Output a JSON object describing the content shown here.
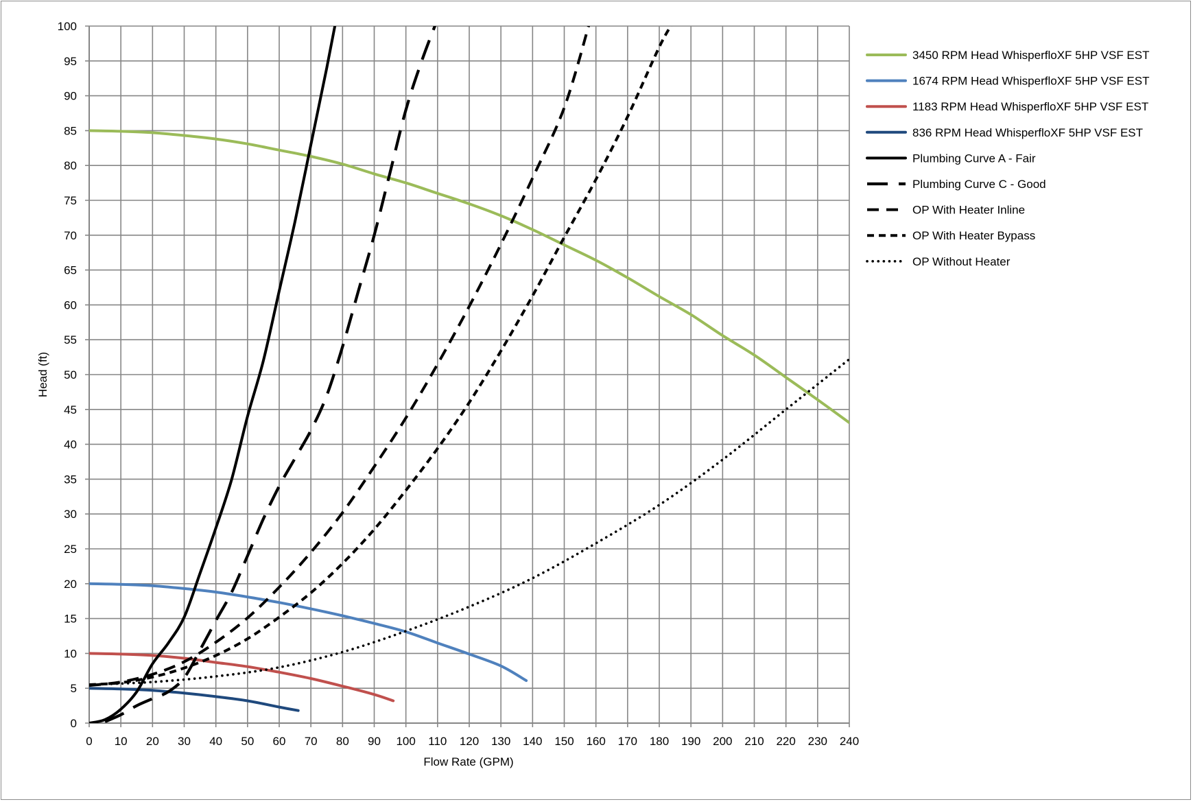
{
  "chart_data": {
    "type": "line",
    "title": "",
    "xlabel": "Flow Rate (GPM)",
    "ylabel": "Head (ft)",
    "xlim": [
      0,
      240
    ],
    "ylim": [
      0,
      100
    ],
    "x_ticks": [
      0,
      10,
      20,
      30,
      40,
      50,
      60,
      70,
      80,
      90,
      100,
      110,
      120,
      130,
      140,
      150,
      160,
      170,
      180,
      190,
      200,
      210,
      220,
      230,
      240
    ],
    "y_ticks": [
      0,
      5,
      10,
      15,
      20,
      25,
      30,
      35,
      40,
      45,
      50,
      55,
      60,
      65,
      70,
      75,
      80,
      85,
      90,
      95,
      100
    ],
    "grid": true,
    "legend_position": "right",
    "series": [
      {
        "name": "3450 RPM Head WhisperfloXF 5HP VSF EST",
        "color": "#9bbb59",
        "style": "solid",
        "x": [
          0,
          10,
          20,
          30,
          40,
          50,
          60,
          70,
          80,
          90,
          100,
          110,
          120,
          130,
          140,
          150,
          160,
          170,
          180,
          190,
          200,
          210,
          220,
          230,
          240
        ],
        "y": [
          85,
          84.9,
          84.7,
          84.3,
          83.8,
          83.1,
          82.2,
          81.3,
          80.2,
          78.8,
          77.5,
          76,
          74.5,
          72.8,
          70.8,
          68.6,
          66.4,
          63.9,
          61.2,
          58.6,
          55.6,
          52.8,
          49.6,
          46.4,
          43.1
        ]
      },
      {
        "name": "1674 RPM Head WhisperfloXF 5HP VSF EST",
        "color": "#4f81bd",
        "style": "solid",
        "x": [
          0,
          10,
          20,
          30,
          40,
          50,
          60,
          70,
          80,
          90,
          100,
          110,
          120,
          130,
          138
        ],
        "y": [
          20,
          19.9,
          19.7,
          19.3,
          18.8,
          18.1,
          17.3,
          16.4,
          15.4,
          14.3,
          13.1,
          11.5,
          9.9,
          8.2,
          6.1
        ]
      },
      {
        "name": "1183 RPM Head WhisperfloXF 5HP VSF EST",
        "color": "#c0504d",
        "style": "solid",
        "x": [
          0,
          10,
          20,
          30,
          40,
          50,
          60,
          70,
          80,
          90,
          96
        ],
        "y": [
          10,
          9.9,
          9.7,
          9.3,
          8.7,
          8.1,
          7.3,
          6.4,
          5.3,
          4.1,
          3.2
        ]
      },
      {
        "name": "836 RPM Head WhisperfloXF 5HP VSF EST",
        "color": "#1f497d",
        "style": "solid",
        "x": [
          0,
          10,
          20,
          30,
          40,
          50,
          60,
          66
        ],
        "y": [
          5,
          4.9,
          4.7,
          4.3,
          3.8,
          3.2,
          2.3,
          1.8
        ]
      },
      {
        "name": "Plumbing Curve A - Fair",
        "color": "#000000",
        "style": "solid",
        "x": [
          0,
          5,
          10,
          15,
          20,
          25,
          30,
          35,
          40,
          45,
          50,
          55,
          60,
          65,
          70,
          75,
          78
        ],
        "y": [
          0,
          0.5,
          2,
          4.5,
          8.5,
          11.5,
          15.2,
          21.5,
          28,
          35,
          44,
          52,
          62,
          72,
          83,
          94,
          101
        ]
      },
      {
        "name": "Plumbing Curve C - Good",
        "color": "#000000",
        "style": "longdash",
        "x": [
          5,
          10,
          15,
          20,
          25,
          30,
          35,
          40,
          45,
          50,
          55,
          60,
          65,
          70,
          75,
          80,
          85,
          90,
          95,
          100,
          105,
          110
        ],
        "y": [
          0.2,
          1.2,
          2.5,
          3.5,
          4.5,
          6.5,
          10.5,
          14.7,
          18.8,
          24,
          29.3,
          34,
          38,
          42,
          47,
          54,
          62,
          70,
          79,
          88,
          95,
          101
        ]
      },
      {
        "name": "OP With Heater Inline",
        "color": "#000000",
        "style": "dash",
        "x": [
          0,
          10,
          20,
          30,
          40,
          50,
          60,
          70,
          80,
          90,
          100,
          110,
          120,
          130,
          140,
          150,
          158
        ],
        "y": [
          5.4,
          5.9,
          7,
          8.8,
          11.6,
          15.1,
          19.5,
          24.5,
          30.2,
          36.8,
          43.8,
          51.5,
          59.8,
          68.7,
          78.2,
          88.3,
          100.5
        ]
      },
      {
        "name": "OP With Heater Bypass",
        "color": "#000000",
        "style": "shortdash",
        "x": [
          0,
          10,
          20,
          30,
          40,
          50,
          60,
          70,
          80,
          90,
          100,
          110,
          120,
          130,
          140,
          150,
          160,
          170,
          180,
          185
        ],
        "y": [
          5.5,
          5.8,
          6.6,
          7.9,
          9.7,
          12.1,
          15.2,
          18.7,
          22.9,
          27.8,
          33.4,
          39.4,
          46,
          53.4,
          61.3,
          69.7,
          78,
          87,
          97,
          101
        ]
      },
      {
        "name": "OP Without Heater",
        "color": "#000000",
        "style": "dotted",
        "x": [
          0,
          20,
          40,
          60,
          80,
          100,
          120,
          140,
          160,
          180,
          200,
          220,
          240
        ],
        "y": [
          5.5,
          5.9,
          6.7,
          8,
          10.2,
          13.2,
          16.7,
          20.8,
          25.8,
          31.3,
          37.8,
          45,
          52.2
        ]
      }
    ]
  }
}
